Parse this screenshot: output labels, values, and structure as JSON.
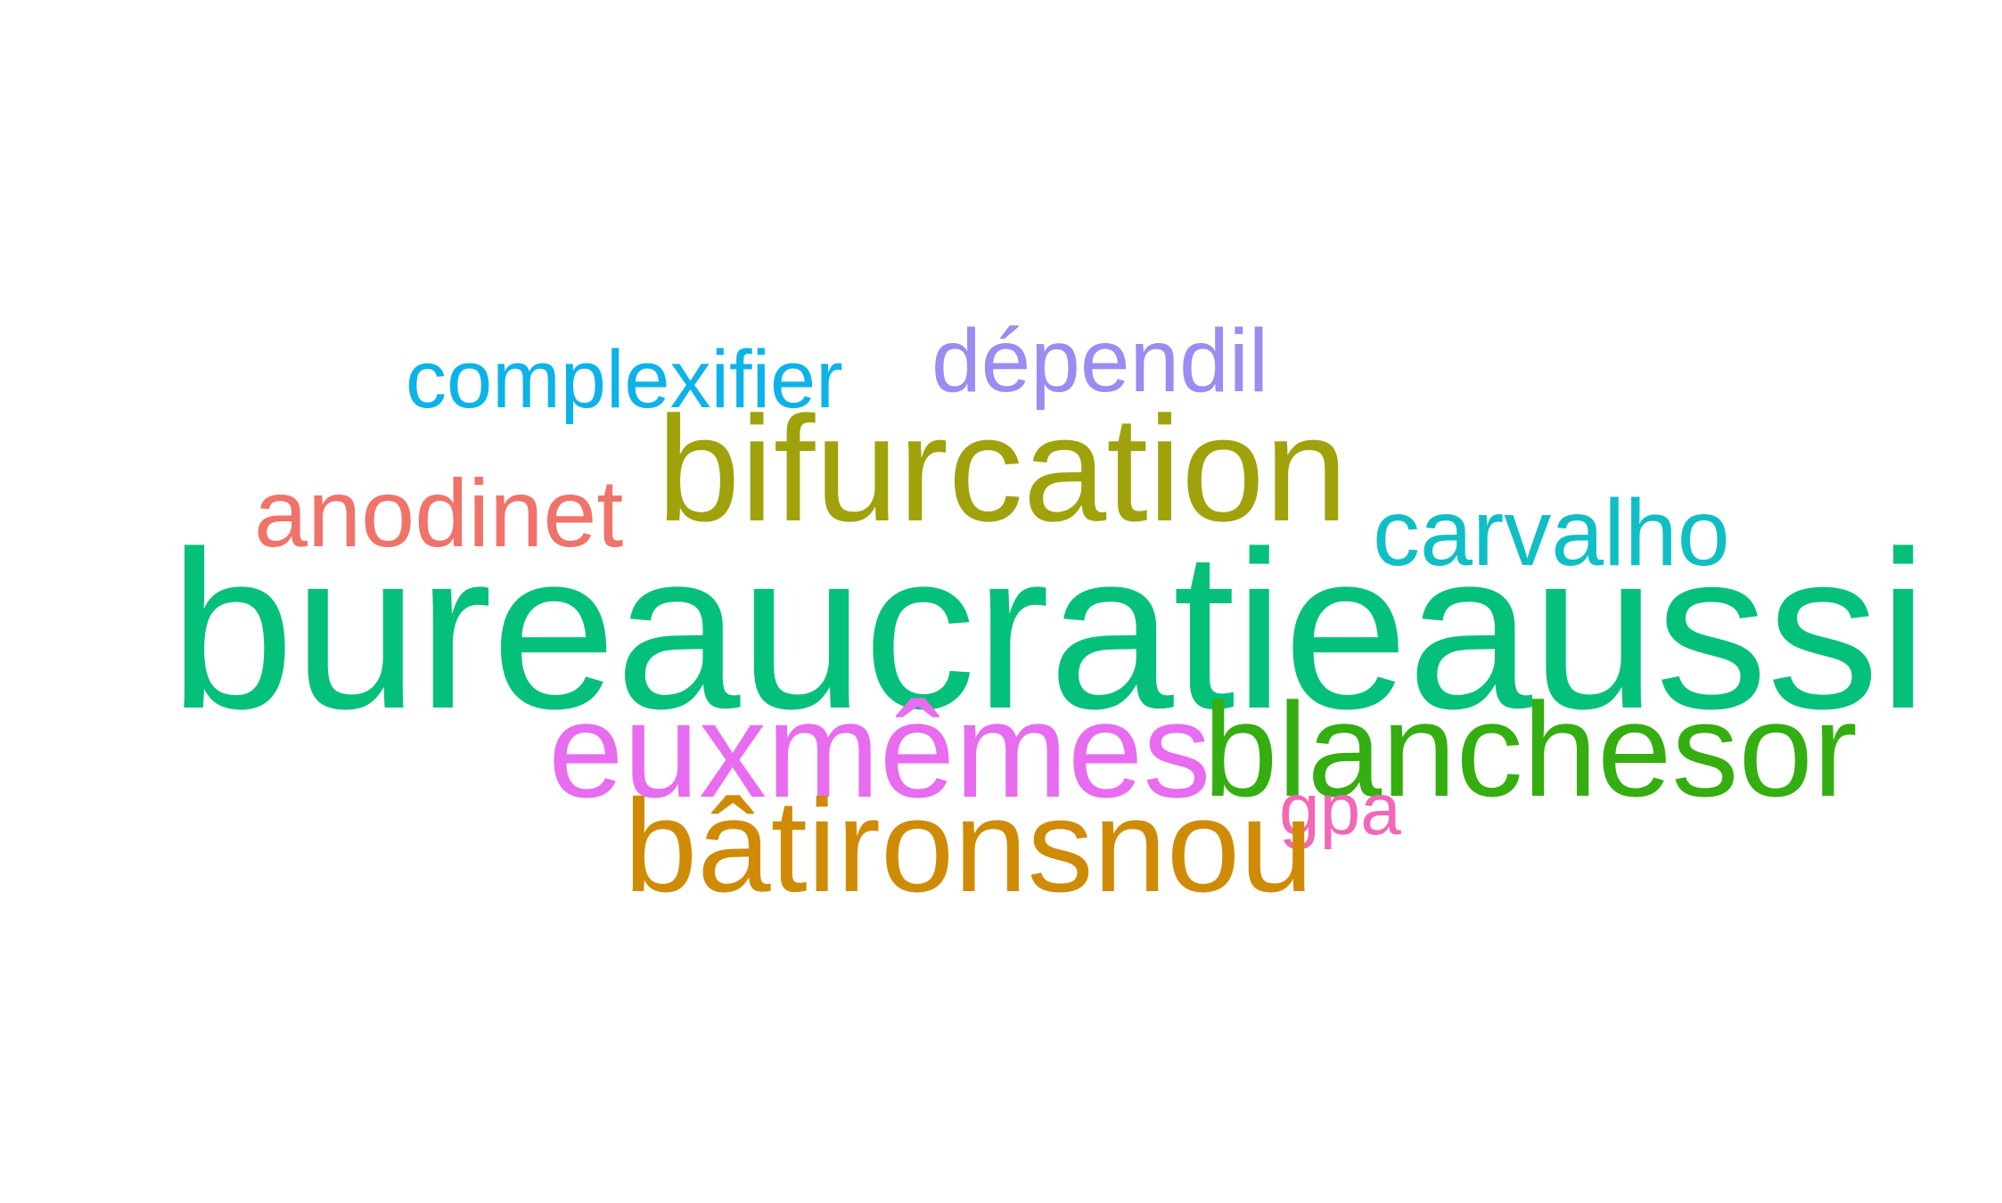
{
  "words": {
    "complexifier": {
      "text": "complexifier",
      "color": "#0DB3E8"
    },
    "dependil": {
      "text": "dépendil",
      "color": "#9A8CF0"
    },
    "bifurcation": {
      "text": "bifurcation",
      "color": "#A0A20C"
    },
    "anodinet": {
      "text": "anodinet",
      "color": "#F0736A"
    },
    "carvalho": {
      "text": "carvalho",
      "color": "#0FBFC4"
    },
    "bureaucratieaussi": {
      "text": "bureaucratieaussi",
      "color": "#05C07A"
    },
    "euxmemes": {
      "text": "euxmêmes",
      "color": "#E86CF0"
    },
    "blanchesor": {
      "text": "blanchesor",
      "color": "#34AE10"
    },
    "gpa": {
      "text": "gpa",
      "color": "#F267B8"
    },
    "batironsnou": {
      "text": "bâtironsnou",
      "color": "#D08B06"
    }
  }
}
